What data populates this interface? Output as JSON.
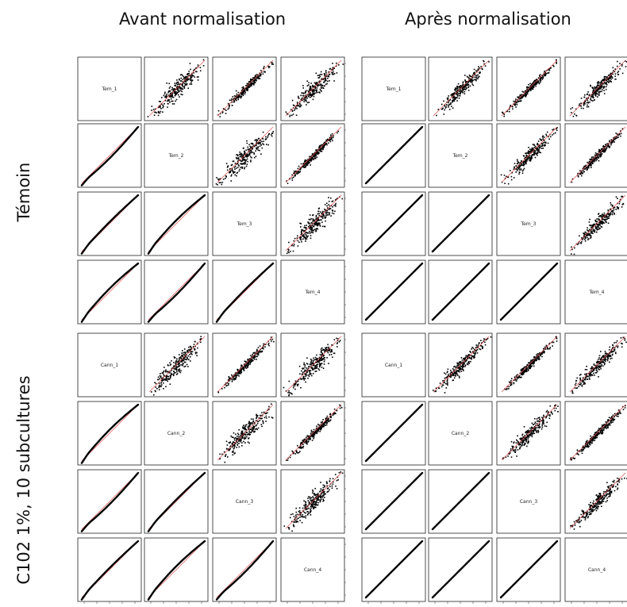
{
  "panels": {
    "left_title": "Avant normalisation",
    "right_title": "Après normalisation"
  },
  "groups": {
    "top": "Témoin",
    "bottom": "C102 1%, 10 subcultures"
  },
  "chart_data": [
    {
      "type": "scatter-matrix",
      "panel": "Avant normalisation",
      "variables": [
        "Tem_1",
        "Tem_2",
        "Tem_3",
        "Tem_4",
        "Cann_1",
        "Cann_2",
        "Cann_3",
        "Cann_4"
      ],
      "upper": "pairwise scatter with red y=x reference",
      "lower": "quantile-quantile lines with red y=x reference",
      "colors": {
        "points": "#000000",
        "reference": "#e05050"
      }
    },
    {
      "type": "scatter-matrix",
      "panel": "Après normalisation",
      "variables": [
        "Tem_1",
        "Tem_2",
        "Tem_3",
        "Tem_4",
        "Cann_1",
        "Cann_2",
        "Cann_3",
        "Cann_4"
      ],
      "upper": "pairwise scatter with red y=x reference",
      "lower": "quantile-quantile lines on y=x after normalisation",
      "colors": {
        "points": "#000000",
        "reference": "#e05050"
      }
    }
  ]
}
